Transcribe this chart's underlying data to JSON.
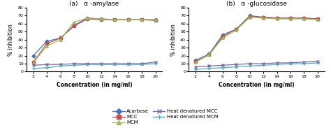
{
  "x": [
    2,
    4,
    6,
    8,
    10,
    12,
    14,
    16,
    18,
    20
  ],
  "amylase": {
    "acarbose": [
      20,
      38,
      42,
      58,
      67,
      66,
      65,
      65,
      65,
      65
    ],
    "mcc": [
      12,
      35,
      42,
      57,
      66,
      65,
      65,
      65,
      65,
      64
    ],
    "mcm": [
      11,
      32,
      40,
      62,
      67,
      66,
      65,
      65,
      65,
      65
    ],
    "heat_denatured_mcc": [
      8,
      9,
      9,
      10,
      10,
      10,
      10,
      10,
      10,
      12
    ],
    "heat_denatured_mcm": [
      4,
      5,
      7,
      8,
      9,
      9,
      9,
      9,
      9,
      10
    ]
  },
  "glucosidase": {
    "acarbose": [
      14,
      22,
      46,
      53,
      70,
      68,
      67,
      67,
      67,
      66
    ],
    "mcc": [
      13,
      21,
      44,
      53,
      69,
      68,
      67,
      67,
      67,
      66
    ],
    "mcm": [
      12,
      21,
      42,
      52,
      68,
      67,
      66,
      66,
      66,
      65
    ],
    "heat_denatured_mcc": [
      6,
      7,
      8,
      9,
      10,
      10,
      11,
      11,
      12,
      13
    ],
    "heat_denatured_mcm": [
      3,
      4,
      5,
      6,
      7,
      8,
      9,
      10,
      10,
      11
    ]
  },
  "colors": {
    "acarbose": "#4472C4",
    "mcc": "#C0504D",
    "mcm": "#9BBB59",
    "heat_denatured_mcc": "#8064A2",
    "heat_denatured_mcm": "#4BACC6"
  },
  "markers": {
    "acarbose": "D",
    "mcc": "s",
    "mcm": "^",
    "heat_denatured_mcc": "x",
    "heat_denatured_mcm": "+"
  },
  "title_a": "(a)   α -amylase",
  "title_b": "(b)   α -glucosidase",
  "xlabel": "Concentration (in mg/ml)",
  "ylabel": "% inhibition",
  "ylim": [
    0,
    80
  ],
  "yticks": [
    0,
    10,
    20,
    30,
    40,
    50,
    60,
    70,
    80
  ],
  "xlim": [
    1,
    21
  ],
  "xticks": [
    2,
    4,
    6,
    8,
    10,
    12,
    14,
    16,
    18,
    20
  ],
  "legend_labels": [
    "Acarbose",
    "MCC",
    "MCM",
    "Heat denatured MCC",
    "Heat denatured MCM"
  ],
  "legend_keys": [
    "acarbose",
    "mcc",
    "mcm",
    "heat_denatured_mcc",
    "heat_denatured_mcm"
  ],
  "figsize": [
    4.74,
    1.83
  ],
  "dpi": 100
}
